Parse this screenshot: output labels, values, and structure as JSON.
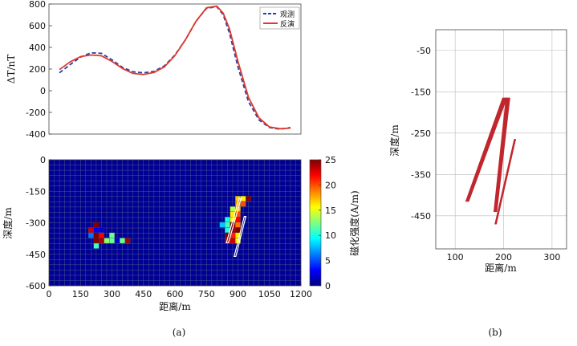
{
  "chart_data": [
    {
      "type": "line",
      "id": "anomaly-profile",
      "ylabel": "ΔT/nT",
      "ylim": [
        -400,
        800
      ],
      "yticks": [
        800,
        600,
        400,
        200,
        0,
        -200,
        -400
      ],
      "xlim": [
        0,
        1200
      ],
      "legend": "top-right",
      "series": [
        {
          "name": "观测",
          "color": "#2b3f9e",
          "dash": true,
          "x": [
            50,
            100,
            150,
            200,
            250,
            300,
            350,
            400,
            450,
            500,
            550,
            600,
            650,
            700,
            750,
            800,
            830,
            860,
            900,
            950,
            1000,
            1050,
            1100,
            1150
          ],
          "y": [
            165,
            240,
            310,
            350,
            345,
            285,
            215,
            175,
            165,
            178,
            230,
            330,
            470,
            640,
            760,
            775,
            700,
            530,
            220,
            -100,
            -270,
            -340,
            -355,
            -340
          ]
        },
        {
          "name": "反演",
          "color": "#e03a2e",
          "dash": false,
          "x": [
            50,
            100,
            150,
            200,
            250,
            300,
            350,
            400,
            450,
            500,
            550,
            600,
            650,
            700,
            750,
            800,
            830,
            860,
            900,
            950,
            1000,
            1050,
            1100,
            1150
          ],
          "y": [
            195,
            265,
            315,
            330,
            322,
            270,
            205,
            160,
            150,
            168,
            220,
            325,
            470,
            640,
            765,
            780,
            715,
            570,
            270,
            -60,
            -250,
            -335,
            -350,
            -345
          ]
        }
      ]
    },
    {
      "type": "heatmap",
      "id": "susceptibility-section",
      "xlabel": "距离/m",
      "ylabel": "深度/m",
      "xlim": [
        0,
        1200
      ],
      "ylim": [
        -600,
        0
      ],
      "xticks": [
        0,
        150,
        300,
        450,
        600,
        750,
        900,
        1050,
        1200
      ],
      "yticks": [
        0,
        -150,
        -300,
        -450,
        -600
      ],
      "grid": true,
      "colorbar": {
        "label": "磁化强度(A/m)",
        "min": 0,
        "max": 25,
        "ticks": [
          0,
          5,
          10,
          15,
          20,
          25
        ]
      },
      "cells": [
        {
          "x": 225,
          "y": -310,
          "v": 25
        },
        {
          "x": 200,
          "y": -335,
          "v": 23
        },
        {
          "x": 225,
          "y": -335,
          "v": 3
        },
        {
          "x": 250,
          "y": -335,
          "v": 2
        },
        {
          "x": 200,
          "y": -360,
          "v": 6
        },
        {
          "x": 225,
          "y": -360,
          "v": 25
        },
        {
          "x": 250,
          "y": -360,
          "v": 22
        },
        {
          "x": 300,
          "y": -360,
          "v": 12
        },
        {
          "x": 225,
          "y": -385,
          "v": 25
        },
        {
          "x": 250,
          "y": -385,
          "v": 24
        },
        {
          "x": 275,
          "y": -385,
          "v": 13
        },
        {
          "x": 300,
          "y": -385,
          "v": 12
        },
        {
          "x": 325,
          "y": -385,
          "v": 2
        },
        {
          "x": 350,
          "y": -385,
          "v": 12
        },
        {
          "x": 375,
          "y": -385,
          "v": 24
        },
        {
          "x": 225,
          "y": -410,
          "v": 11
        },
        {
          "x": 900,
          "y": -185,
          "v": 17
        },
        {
          "x": 925,
          "y": -185,
          "v": 16
        },
        {
          "x": 950,
          "y": -185,
          "v": 25
        },
        {
          "x": 900,
          "y": -210,
          "v": 18
        },
        {
          "x": 925,
          "y": -210,
          "v": 20
        },
        {
          "x": 875,
          "y": -235,
          "v": 14
        },
        {
          "x": 900,
          "y": -235,
          "v": 17
        },
        {
          "x": 875,
          "y": -260,
          "v": 16
        },
        {
          "x": 900,
          "y": -260,
          "v": 20
        },
        {
          "x": 850,
          "y": -285,
          "v": 10
        },
        {
          "x": 875,
          "y": -285,
          "v": 16
        },
        {
          "x": 900,
          "y": -285,
          "v": 22
        },
        {
          "x": 825,
          "y": -310,
          "v": 8
        },
        {
          "x": 850,
          "y": -310,
          "v": 11
        },
        {
          "x": 875,
          "y": -310,
          "v": 25
        },
        {
          "x": 900,
          "y": -310,
          "v": 19
        },
        {
          "x": 850,
          "y": -335,
          "v": 10
        },
        {
          "x": 875,
          "y": -335,
          "v": 24
        },
        {
          "x": 900,
          "y": -335,
          "v": 25
        },
        {
          "x": 850,
          "y": -360,
          "v": 25
        },
        {
          "x": 875,
          "y": -360,
          "v": 21
        },
        {
          "x": 900,
          "y": -360,
          "v": 16
        },
        {
          "x": 850,
          "y": -385,
          "v": 24
        },
        {
          "x": 875,
          "y": -385,
          "v": 23
        },
        {
          "x": 900,
          "y": -385,
          "v": 16
        }
      ],
      "outlines": [
        [
          [
            905,
            -185
          ],
          [
            915,
            -185
          ],
          [
            855,
            -395
          ],
          [
            845,
            -395
          ]
        ],
        [
          [
            930,
            -270
          ],
          [
            938,
            -270
          ],
          [
            890,
            -460
          ],
          [
            882,
            -460
          ]
        ]
      ]
    },
    {
      "type": "scatter",
      "id": "source-bodies",
      "xlabel": "距离/m",
      "ylabel": "深度/m",
      "xlim": [
        60,
        330
      ],
      "ylim": [
        -530,
        0
      ],
      "xticks": [
        100,
        200,
        300
      ],
      "yticks": [
        -50,
        -150,
        -250,
        -350,
        -450
      ],
      "grid": true,
      "bodies": [
        [
          [
            198,
            -165
          ],
          [
            207,
            -165
          ],
          [
            128,
            -415
          ],
          [
            122,
            -415
          ]
        ],
        [
          [
            205,
            -165
          ],
          [
            213,
            -165
          ],
          [
            186,
            -440
          ],
          [
            180,
            -440
          ]
        ],
        [
          [
            222,
            -265
          ],
          [
            225,
            -265
          ],
          [
            185,
            -470
          ],
          [
            182,
            -470
          ]
        ]
      ],
      "color": "#c0262d"
    }
  ],
  "labels": {
    "panel_a": "(a)",
    "panel_b": "(b)"
  }
}
